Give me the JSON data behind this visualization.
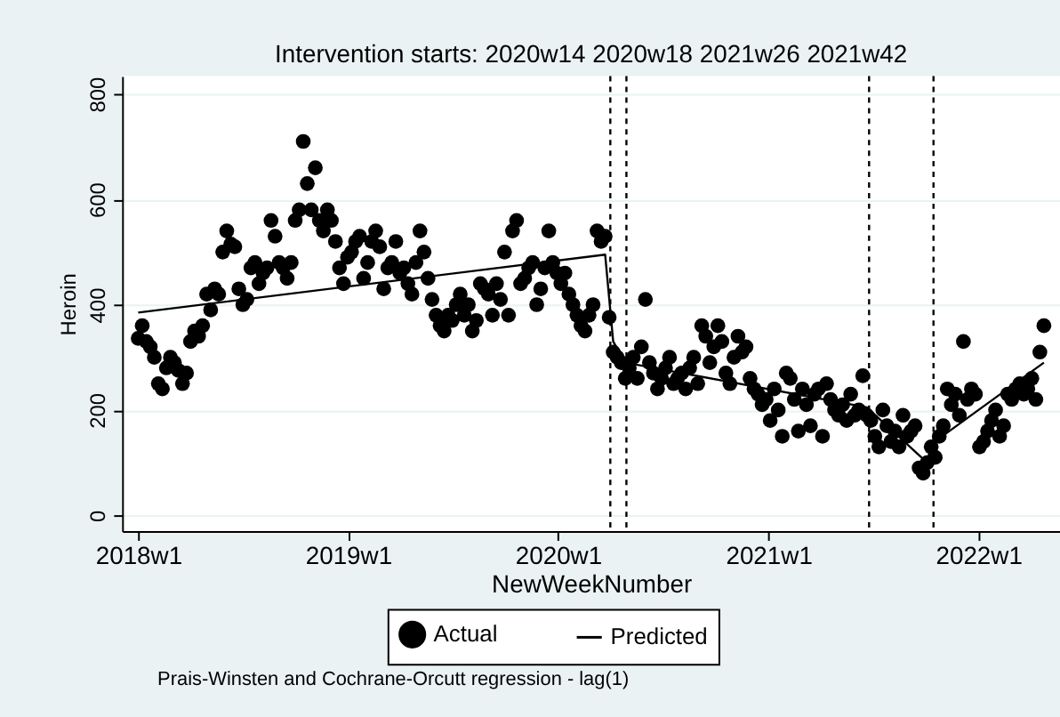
{
  "chart_data": {
    "type": "scatter",
    "title": "Intervention starts: 2020w14 2020w18 2021w26 2021w42",
    "xlabel": "NewWeekNumber",
    "ylabel": "Heroin",
    "xlim": [
      "2017-12-04",
      "2022-05-23"
    ],
    "ylim": [
      -30,
      834
    ],
    "xticks": [
      {
        "value": "2018-01-01",
        "label": "2018w1"
      },
      {
        "value": "2019-01-01",
        "label": "2019w1"
      },
      {
        "value": "2020-01-01",
        "label": "2020w1"
      },
      {
        "value": "2021-01-01",
        "label": "2021w1"
      },
      {
        "value": "2022-01-01",
        "label": "2022w1"
      }
    ],
    "yticks": [
      0,
      200,
      400,
      600,
      800
    ],
    "grid": "y",
    "legend": "bottom",
    "ref_lines": [
      {
        "axis": "x",
        "value": "2020-04-01",
        "line_style": "dashed",
        "color": "#000000"
      },
      {
        "axis": "x",
        "value": "2020-04-29",
        "line_style": "dashed",
        "color": "#000000"
      },
      {
        "axis": "x",
        "value": "2021-06-25",
        "line_style": "dashed",
        "color": "#000000"
      },
      {
        "axis": "x",
        "value": "2021-10-15",
        "line_style": "dashed",
        "color": "#000000"
      }
    ],
    "annotations": [
      "Prais-Winsten and Cochrane-Orcutt regression - lag(1)"
    ],
    "series": [
      {
        "name": "Actual",
        "color": "#000000",
        "marker": "circle",
        "x": [
          "2018-01-01",
          "2018-01-08",
          "2018-01-15",
          "2018-01-22",
          "2018-01-29",
          "2018-02-05",
          "2018-02-12",
          "2018-02-19",
          "2018-02-26",
          "2018-03-05",
          "2018-03-12",
          "2018-03-19",
          "2018-03-26",
          "2018-04-02",
          "2018-04-09",
          "2018-04-16",
          "2018-04-23",
          "2018-04-30",
          "2018-05-07",
          "2018-05-14",
          "2018-05-21",
          "2018-05-28",
          "2018-06-04",
          "2018-06-11",
          "2018-06-18",
          "2018-06-25",
          "2018-07-02",
          "2018-07-09",
          "2018-07-16",
          "2018-07-23",
          "2018-07-30",
          "2018-08-06",
          "2018-08-13",
          "2018-08-20",
          "2018-08-27",
          "2018-09-03",
          "2018-09-10",
          "2018-09-17",
          "2018-09-24",
          "2018-10-01",
          "2018-10-08",
          "2018-10-15",
          "2018-10-22",
          "2018-10-29",
          "2018-11-05",
          "2018-11-12",
          "2018-11-19",
          "2018-11-26",
          "2018-12-03",
          "2018-12-10",
          "2018-12-17",
          "2018-12-24",
          "2018-12-31",
          "2019-01-07",
          "2019-01-14",
          "2019-01-21",
          "2019-01-28",
          "2019-02-04",
          "2019-02-11",
          "2019-02-18",
          "2019-02-25",
          "2019-03-04",
          "2019-03-11",
          "2019-03-18",
          "2019-03-25",
          "2019-04-01",
          "2019-04-08",
          "2019-04-15",
          "2019-04-22",
          "2019-04-29",
          "2019-05-06",
          "2019-05-13",
          "2019-05-20",
          "2019-05-27",
          "2019-06-03",
          "2019-06-10",
          "2019-06-17",
          "2019-06-24",
          "2019-07-01",
          "2019-07-08",
          "2019-07-15",
          "2019-07-22",
          "2019-07-29",
          "2019-08-05",
          "2019-08-12",
          "2019-08-19",
          "2019-08-26",
          "2019-09-02",
          "2019-09-09",
          "2019-09-16",
          "2019-09-23",
          "2019-09-30",
          "2019-10-07",
          "2019-10-14",
          "2019-10-21",
          "2019-10-28",
          "2019-11-04",
          "2019-11-11",
          "2019-11-18",
          "2019-11-25",
          "2019-12-02",
          "2019-12-09",
          "2019-12-16",
          "2019-12-23",
          "2019-12-30",
          "2020-01-06",
          "2020-01-13",
          "2020-01-20",
          "2020-01-27",
          "2020-02-03",
          "2020-02-10",
          "2020-02-17",
          "2020-02-24",
          "2020-03-02",
          "2020-03-09",
          "2020-03-16",
          "2020-03-23",
          "2020-03-30",
          "2020-04-06",
          "2020-04-13",
          "2020-04-20",
          "2020-04-27",
          "2020-05-04",
          "2020-05-11",
          "2020-05-18",
          "2020-05-25",
          "2020-06-01",
          "2020-06-08",
          "2020-06-15",
          "2020-06-22",
          "2020-06-29",
          "2020-07-06",
          "2020-07-13",
          "2020-07-20",
          "2020-07-27",
          "2020-08-03",
          "2020-08-10",
          "2020-08-17",
          "2020-08-24",
          "2020-08-31",
          "2020-09-07",
          "2020-09-14",
          "2020-09-21",
          "2020-09-28",
          "2020-10-05",
          "2020-10-12",
          "2020-10-19",
          "2020-10-26",
          "2020-11-02",
          "2020-11-09",
          "2020-11-16",
          "2020-11-23",
          "2020-11-30",
          "2020-12-07",
          "2020-12-14",
          "2020-12-21",
          "2020-12-28",
          "2021-01-04",
          "2021-01-11",
          "2021-01-18",
          "2021-01-25",
          "2021-02-01",
          "2021-02-08",
          "2021-02-15",
          "2021-02-22",
          "2021-03-01",
          "2021-03-08",
          "2021-03-15",
          "2021-03-22",
          "2021-03-29",
          "2021-04-05",
          "2021-04-12",
          "2021-04-19",
          "2021-04-26",
          "2021-05-03",
          "2021-05-10",
          "2021-05-17",
          "2021-05-24",
          "2021-05-31",
          "2021-06-07",
          "2021-06-14",
          "2021-06-21",
          "2021-06-28",
          "2021-07-05",
          "2021-07-12",
          "2021-07-19",
          "2021-07-26",
          "2021-08-02",
          "2021-08-09",
          "2021-08-16",
          "2021-08-23",
          "2021-08-30",
          "2021-09-06",
          "2021-09-13",
          "2021-09-20",
          "2021-09-27",
          "2021-10-04",
          "2021-10-11",
          "2021-10-18",
          "2021-10-25",
          "2021-11-01",
          "2021-11-08",
          "2021-11-15",
          "2021-11-22",
          "2021-11-29",
          "2021-12-06",
          "2021-12-13",
          "2021-12-20",
          "2021-12-27",
          "2022-01-03",
          "2022-01-10",
          "2022-01-17",
          "2022-01-24",
          "2022-01-31",
          "2022-02-07",
          "2022-02-14",
          "2022-02-21",
          "2022-02-28",
          "2022-03-07",
          "2022-03-14",
          "2022-03-21",
          "2022-03-28",
          "2022-04-04",
          "2022-04-11",
          "2022-04-18",
          "2022-04-25"
        ],
        "values": [
          336,
          360,
          330,
          320,
          300,
          250,
          240,
          280,
          300,
          290,
          275,
          250,
          270,
          330,
          350,
          340,
          360,
          420,
          390,
          430,
          420,
          500,
          540,
          515,
          510,
          430,
          400,
          410,
          470,
          480,
          440,
          460,
          470,
          560,
          530,
          480,
          470,
          450,
          480,
          560,
          580,
          710,
          630,
          580,
          660,
          560,
          540,
          580,
          560,
          520,
          470,
          440,
          490,
          500,
          520,
          530,
          450,
          480,
          520,
          540,
          510,
          430,
          470,
          480,
          520,
          460,
          470,
          440,
          420,
          480,
          540,
          500,
          450,
          410,
          380,
          360,
          350,
          380,
          370,
          400,
          420,
          380,
          400,
          350,
          370,
          440,
          430,
          420,
          380,
          440,
          410,
          500,
          380,
          540,
          560,
          440,
          450,
          470,
          480,
          400,
          430,
          470,
          540,
          480,
          460,
          440,
          460,
          420,
          400,
          380,
          360,
          350,
          380,
          400,
          540,
          520,
          530,
          376,
          310,
          300,
          290,
          260,
          280,
          300,
          260,
          320,
          410,
          290,
          270,
          240,
          260,
          280,
          300,
          250,
          260,
          270,
          240,
          280,
          300,
          250,
          360,
          340,
          290,
          320,
          360,
          330,
          270,
          250,
          300,
          340,
          310,
          320,
          260,
          240,
          230,
          210,
          220,
          180,
          240,
          200,
          150,
          270,
          260,
          220,
          160,
          240,
          210,
          170,
          230,
          240,
          150,
          250,
          220,
          200,
          190,
          210,
          180,
          230,
          190,
          200,
          265,
          190,
          180,
          150,
          130,
          200,
          170,
          140,
          160,
          130,
          190,
          150,
          160,
          170,
          90,
          80,
          100,
          130,
          110,
          150,
          170,
          240,
          210,
          230,
          190,
          330,
          220,
          240,
          230,
          130,
          140,
          160,
          180,
          200,
          150,
          170,
          230,
          220,
          240,
          250,
          230,
          240,
          260,
          220,
          310,
          360
        ]
      },
      {
        "name": "Predicted",
        "type": "line",
        "color": "#000000",
        "marker": "none",
        "line_style": "solid",
        "x": [
          "2018-01-01",
          "2020-03-23",
          "2020-04-06",
          "2020-04-27",
          "2021-06-21",
          "2021-10-04",
          "2021-10-11",
          "2022-04-25"
        ],
        "values": [
          385,
          495,
          330,
          290,
          205,
          100,
          135,
          290
        ]
      }
    ]
  }
}
